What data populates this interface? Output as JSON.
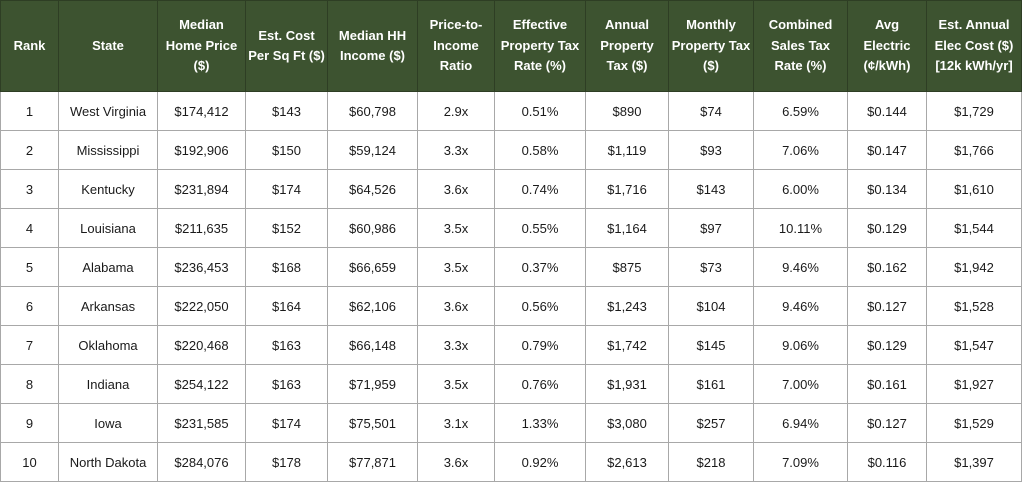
{
  "table": {
    "headers": [
      "Rank",
      "State",
      "Median Home Price ($)",
      "Est. Cost Per Sq Ft ($)",
      "Median HH Income ($)",
      "Price-to-Income Ratio",
      "Effective Property Tax Rate (%)",
      "Annual Property Tax ($)",
      "Monthly Property Tax ($)",
      "Combined Sales Tax Rate (%)",
      "Avg Electric (¢/kWh)",
      "Est. Annual Elec Cost ($) [12k kWh/yr]"
    ],
    "rows": [
      [
        "1",
        "West Virginia",
        "$174,412",
        "$143",
        "$60,798",
        "2.9x",
        "0.51%",
        "$890",
        "$74",
        "6.59%",
        "$0.144",
        "$1,729"
      ],
      [
        "2",
        "Mississippi",
        "$192,906",
        "$150",
        "$59,124",
        "3.3x",
        "0.58%",
        "$1,119",
        "$93",
        "7.06%",
        "$0.147",
        "$1,766"
      ],
      [
        "3",
        "Kentucky",
        "$231,894",
        "$174",
        "$64,526",
        "3.6x",
        "0.74%",
        "$1,716",
        "$143",
        "6.00%",
        "$0.134",
        "$1,610"
      ],
      [
        "4",
        "Louisiana",
        "$211,635",
        "$152",
        "$60,986",
        "3.5x",
        "0.55%",
        "$1,164",
        "$97",
        "10.11%",
        "$0.129",
        "$1,544"
      ],
      [
        "5",
        "Alabama",
        "$236,453",
        "$168",
        "$66,659",
        "3.5x",
        "0.37%",
        "$875",
        "$73",
        "9.46%",
        "$0.162",
        "$1,942"
      ],
      [
        "6",
        "Arkansas",
        "$222,050",
        "$164",
        "$62,106",
        "3.6x",
        "0.56%",
        "$1,243",
        "$104",
        "9.46%",
        "$0.127",
        "$1,528"
      ],
      [
        "7",
        "Oklahoma",
        "$220,468",
        "$163",
        "$66,148",
        "3.3x",
        "0.79%",
        "$1,742",
        "$145",
        "9.06%",
        "$0.129",
        "$1,547"
      ],
      [
        "8",
        "Indiana",
        "$254,122",
        "$163",
        "$71,959",
        "3.5x",
        "0.76%",
        "$1,931",
        "$161",
        "7.00%",
        "$0.161",
        "$1,927"
      ],
      [
        "9",
        "Iowa",
        "$231,585",
        "$174",
        "$75,501",
        "3.1x",
        "1.33%",
        "$3,080",
        "$257",
        "6.94%",
        "$0.127",
        "$1,529"
      ],
      [
        "10",
        "North Dakota",
        "$284,076",
        "$178",
        "$77,871",
        "3.6x",
        "0.92%",
        "$2,613",
        "$218",
        "7.09%",
        "$0.116",
        "$1,397"
      ]
    ]
  },
  "colors": {
    "header_bg": "#3d5330",
    "header_text": "#ffffff",
    "row_bg": "#ffffff",
    "border": "#a8a8a8"
  }
}
